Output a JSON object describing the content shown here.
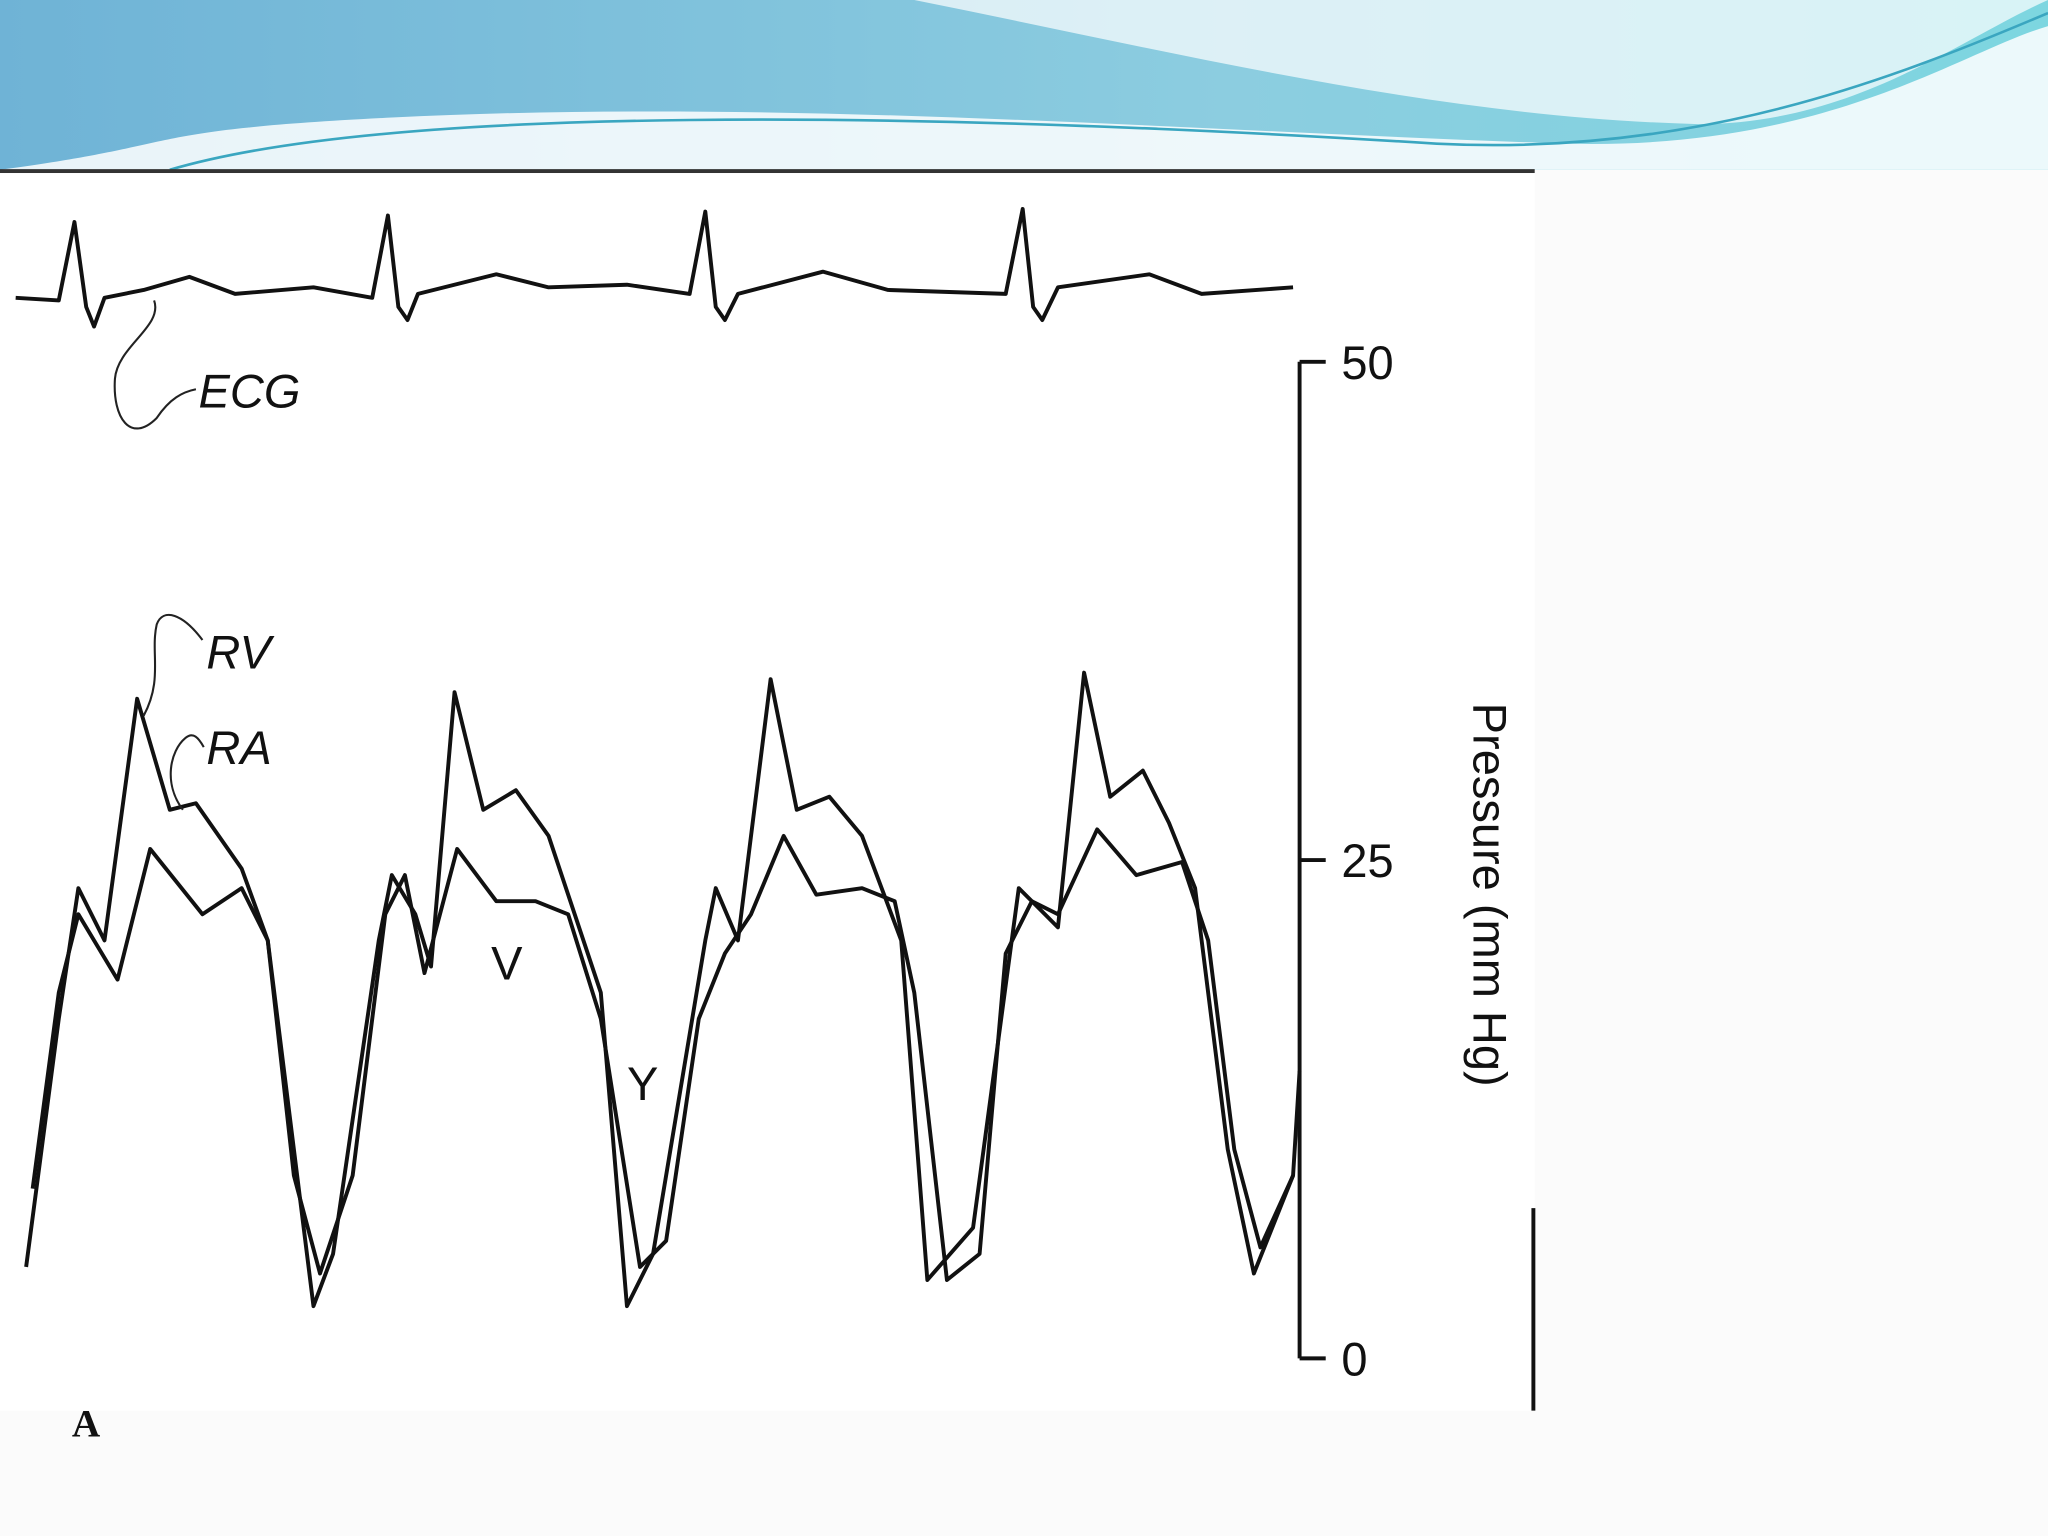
{
  "figure": {
    "labels": {
      "ecg": "ECG",
      "rv": "RV",
      "ra": "RA",
      "v": "V",
      "y": "Y"
    },
    "axis": {
      "title": "Pressure (mm Hg)",
      "ylim": [
        0,
        50
      ],
      "yticks": [
        0,
        25,
        50
      ]
    },
    "panel_label": "A"
  }
}
